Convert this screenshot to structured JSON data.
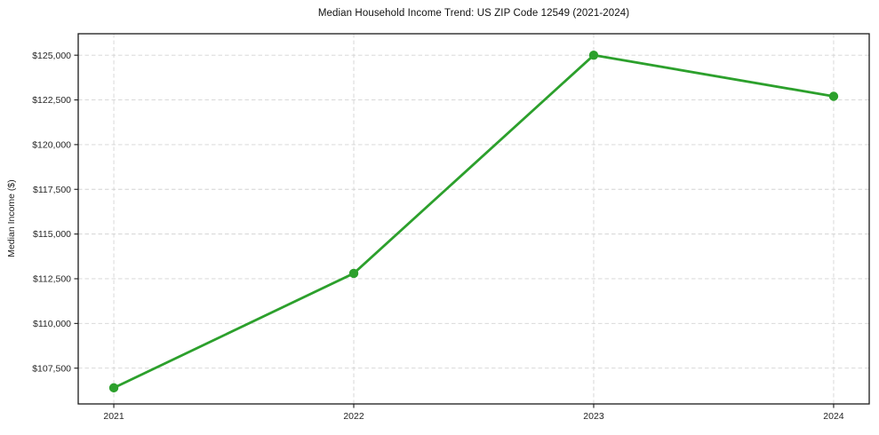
{
  "title": "Median Household Income Trend: US ZIP Code 12549 (2021-2024)",
  "chart_data": {
    "type": "line",
    "title": "Median Household Income Trend: US ZIP Code 12549 (2021-2024)",
    "xlabel": "",
    "ylabel": "Median Income ($)",
    "categories": [
      "2021",
      "2022",
      "2023",
      "2024"
    ],
    "series": [
      {
        "name": "Median Household Income",
        "values": [
          106400,
          112800,
          125000,
          122700
        ]
      }
    ],
    "yticks": [
      107500,
      110000,
      112500,
      115000,
      117500,
      120000,
      122500,
      125000
    ],
    "ytick_labels": [
      "$107,500",
      "$110,000",
      "$112,500",
      "$115,000",
      "$117,500",
      "$120,000",
      "$122,500",
      "$125,000"
    ],
    "ylim": [
      105500,
      126200
    ],
    "grid": true,
    "grid_style": "dashed",
    "legend": "none",
    "line_color": "#2ca02c",
    "marker": "circle",
    "marker_color": "#2ca02c",
    "grid_color": "#d4d4d4",
    "axis_color": "#1a1a1a",
    "background_color": "#ffffff"
  }
}
